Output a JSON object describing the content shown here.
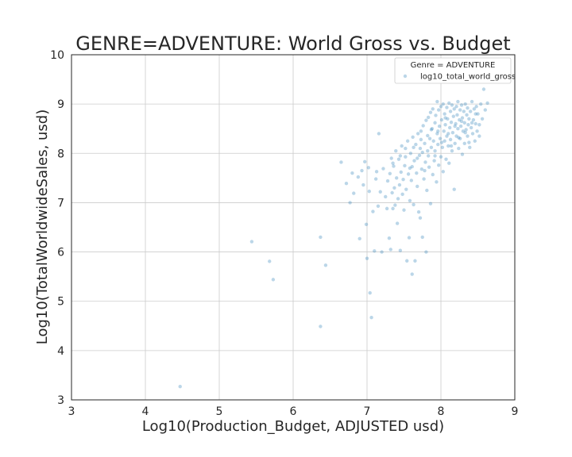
{
  "colors": {
    "point": "#1f77b4",
    "grid": "#cccccc",
    "frame": "#262626"
  },
  "chart_data": {
    "type": "scatter",
    "title": "GENRE=ADVENTURE: World Gross vs. Budget",
    "xlabel": "Log10(Production_Budget, ADJUSTED usd)",
    "ylabel": "Log10(TotalWorldwideSales, usd)",
    "xlim": [
      3,
      9
    ],
    "ylim": [
      3,
      10
    ],
    "xticks": [
      3,
      4,
      5,
      6,
      7,
      8,
      9
    ],
    "yticks": [
      3,
      4,
      5,
      6,
      7,
      8,
      9,
      10
    ],
    "grid": true,
    "legend": {
      "title": "Genre = ADVENTURE",
      "placement": "top-right"
    },
    "series": [
      {
        "name": "log10_total_world_gross",
        "points": [
          [
            4.47,
            3.27
          ],
          [
            5.44,
            6.21
          ],
          [
            5.68,
            5.81
          ],
          [
            5.73,
            5.44
          ],
          [
            6.37,
            6.3
          ],
          [
            6.37,
            4.49
          ],
          [
            6.44,
            5.73
          ],
          [
            6.65,
            7.82
          ],
          [
            6.72,
            7.39
          ],
          [
            6.77,
            7.0
          ],
          [
            6.8,
            7.6
          ],
          [
            6.82,
            7.19
          ],
          [
            6.88,
            7.52
          ],
          [
            6.9,
            6.27
          ],
          [
            6.93,
            7.65
          ],
          [
            6.95,
            7.36
          ],
          [
            6.97,
            7.83
          ],
          [
            6.99,
            6.56
          ],
          [
            7.0,
            5.87
          ],
          [
            7.02,
            7.71
          ],
          [
            7.03,
            7.23
          ],
          [
            7.04,
            5.17
          ],
          [
            7.06,
            4.67
          ],
          [
            7.08,
            6.82
          ],
          [
            7.1,
            6.02
          ],
          [
            7.12,
            7.48
          ],
          [
            7.13,
            7.63
          ],
          [
            7.15,
            6.93
          ],
          [
            7.16,
            8.4
          ],
          [
            7.18,
            7.22
          ],
          [
            7.2,
            6.0
          ],
          [
            7.22,
            7.69
          ],
          [
            7.25,
            7.12
          ],
          [
            7.27,
            6.88
          ],
          [
            7.28,
            7.44
          ],
          [
            7.3,
            6.28
          ],
          [
            7.31,
            7.59
          ],
          [
            7.32,
            6.05
          ],
          [
            7.33,
            7.9
          ],
          [
            7.34,
            7.2
          ],
          [
            7.35,
            6.88
          ],
          [
            7.36,
            7.74
          ],
          [
            7.37,
            7.3
          ],
          [
            7.38,
            6.95
          ],
          [
            7.39,
            8.05
          ],
          [
            7.4,
            7.5
          ],
          [
            7.41,
            6.58
          ],
          [
            7.42,
            7.08
          ],
          [
            7.43,
            7.88
          ],
          [
            7.44,
            7.36
          ],
          [
            7.45,
            6.03
          ],
          [
            7.46,
            7.62
          ],
          [
            7.47,
            8.15
          ],
          [
            7.48,
            7.17
          ],
          [
            7.49,
            7.47
          ],
          [
            7.5,
            6.85
          ],
          [
            7.51,
            7.75
          ],
          [
            7.52,
            7.93
          ],
          [
            7.53,
            7.27
          ],
          [
            7.54,
            5.82
          ],
          [
            7.55,
            8.25
          ],
          [
            7.56,
            7.58
          ],
          [
            7.57,
            6.29
          ],
          [
            7.58,
            7.04
          ],
          [
            7.59,
            8.0
          ],
          [
            7.6,
            7.45
          ],
          [
            7.61,
            7.73
          ],
          [
            7.61,
            5.55
          ],
          [
            7.62,
            8.33
          ],
          [
            7.63,
            6.96
          ],
          [
            7.64,
            7.85
          ],
          [
            7.65,
            5.82
          ],
          [
            7.66,
            8.18
          ],
          [
            7.67,
            7.6
          ],
          [
            7.68,
            7.33
          ],
          [
            7.69,
            8.4
          ],
          [
            7.7,
            6.81
          ],
          [
            7.71,
            7.96
          ],
          [
            7.72,
            8.1
          ],
          [
            7.72,
            6.69
          ],
          [
            7.73,
            8.45
          ],
          [
            7.74,
            7.68
          ],
          [
            7.75,
            6.3
          ],
          [
            7.75,
            8.02
          ],
          [
            7.76,
            8.56
          ],
          [
            7.77,
            7.48
          ],
          [
            7.78,
            8.2
          ],
          [
            7.79,
            7.82
          ],
          [
            7.8,
            8.67
          ],
          [
            7.8,
            6.0
          ],
          [
            7.81,
            7.25
          ],
          [
            7.82,
            8.36
          ],
          [
            7.83,
            7.95
          ],
          [
            7.83,
            8.73
          ],
          [
            7.84,
            7.72
          ],
          [
            7.85,
            8.3
          ],
          [
            7.86,
            8.83
          ],
          [
            7.86,
            6.98
          ],
          [
            7.87,
            8.12
          ],
          [
            7.88,
            8.5
          ],
          [
            7.89,
            7.57
          ],
          [
            7.89,
            8.9
          ],
          [
            7.9,
            8.25
          ],
          [
            7.91,
            7.85
          ],
          [
            7.92,
            8.62
          ],
          [
            7.92,
            8.05
          ],
          [
            7.93,
            8.77
          ],
          [
            7.94,
            7.42
          ],
          [
            7.95,
            8.4
          ],
          [
            7.95,
            9.05
          ],
          [
            7.96,
            8.18
          ],
          [
            7.97,
            8.88
          ],
          [
            7.97,
            7.76
          ],
          [
            7.98,
            8.55
          ],
          [
            7.99,
            8.3
          ],
          [
            8.0,
            8.95
          ],
          [
            8.0,
            7.93
          ],
          [
            8.01,
            8.68
          ],
          [
            8.02,
            8.12
          ],
          [
            8.03,
            9.0
          ],
          [
            8.03,
            7.63
          ],
          [
            8.04,
            8.45
          ],
          [
            8.05,
            8.8
          ],
          [
            8.05,
            8.25
          ],
          [
            8.06,
            8.58
          ],
          [
            8.07,
            7.88
          ],
          [
            8.08,
            8.93
          ],
          [
            8.08,
            8.35
          ],
          [
            8.09,
            8.7
          ],
          [
            8.1,
            8.15
          ],
          [
            8.11,
            9.02
          ],
          [
            8.11,
            7.8
          ],
          [
            8.12,
            8.52
          ],
          [
            8.13,
            8.85
          ],
          [
            8.13,
            8.28
          ],
          [
            8.14,
            8.63
          ],
          [
            8.15,
            8.98
          ],
          [
            8.15,
            8.05
          ],
          [
            8.16,
            8.42
          ],
          [
            8.17,
            8.75
          ],
          [
            8.18,
            7.27
          ],
          [
            8.18,
            8.9
          ],
          [
            8.19,
            8.2
          ],
          [
            8.2,
            8.6
          ],
          [
            8.21,
            8.95
          ],
          [
            8.21,
            8.35
          ],
          [
            8.22,
            8.78
          ],
          [
            8.23,
            8.5
          ],
          [
            8.23,
            9.05
          ],
          [
            8.24,
            8.1
          ],
          [
            8.25,
            8.68
          ],
          [
            8.26,
            8.88
          ],
          [
            8.26,
            8.3
          ],
          [
            8.27,
            8.55
          ],
          [
            8.28,
            8.98
          ],
          [
            8.29,
            8.72
          ],
          [
            8.29,
            7.98
          ],
          [
            8.3,
            8.45
          ],
          [
            8.31,
            8.85
          ],
          [
            8.32,
            8.62
          ],
          [
            8.32,
            8.2
          ],
          [
            8.33,
            9.0
          ],
          [
            8.34,
            8.48
          ],
          [
            8.35,
            8.78
          ],
          [
            8.36,
            8.35
          ],
          [
            8.36,
            8.92
          ],
          [
            8.37,
            8.58
          ],
          [
            8.38,
            8.7
          ],
          [
            8.39,
            8.12
          ],
          [
            8.4,
            8.85
          ],
          [
            8.41,
            8.52
          ],
          [
            8.42,
            9.05
          ],
          [
            8.43,
            8.4
          ],
          [
            8.44,
            8.68
          ],
          [
            8.45,
            8.9
          ],
          [
            8.46,
            8.25
          ],
          [
            8.47,
            8.6
          ],
          [
            8.48,
            8.95
          ],
          [
            8.49,
            8.45
          ],
          [
            8.5,
            8.8
          ],
          [
            8.52,
            8.58
          ],
          [
            8.54,
            9.0
          ],
          [
            8.56,
            8.7
          ],
          [
            8.58,
            9.3
          ],
          [
            8.6,
            8.88
          ],
          [
            8.63,
            9.02
          ],
          [
            7.35,
            7.8
          ],
          [
            7.45,
            7.95
          ],
          [
            7.52,
            8.1
          ],
          [
            7.58,
            7.7
          ],
          [
            7.63,
            8.12
          ],
          [
            7.68,
            7.9
          ],
          [
            7.73,
            8.28
          ],
          [
            7.78,
            7.65
          ],
          [
            7.82,
            8.05
          ],
          [
            7.87,
            8.48
          ],
          [
            7.92,
            7.95
          ],
          [
            7.96,
            8.45
          ],
          [
            8.01,
            8.22
          ],
          [
            8.06,
            8.72
          ],
          [
            8.1,
            8.4
          ],
          [
            8.14,
            8.15
          ],
          [
            8.19,
            8.55
          ],
          [
            8.24,
            8.32
          ],
          [
            8.28,
            8.65
          ],
          [
            8.33,
            8.42
          ],
          [
            8.38,
            8.22
          ],
          [
            8.42,
            8.62
          ],
          [
            8.47,
            8.8
          ],
          [
            8.52,
            8.35
          ]
        ]
      }
    ]
  }
}
